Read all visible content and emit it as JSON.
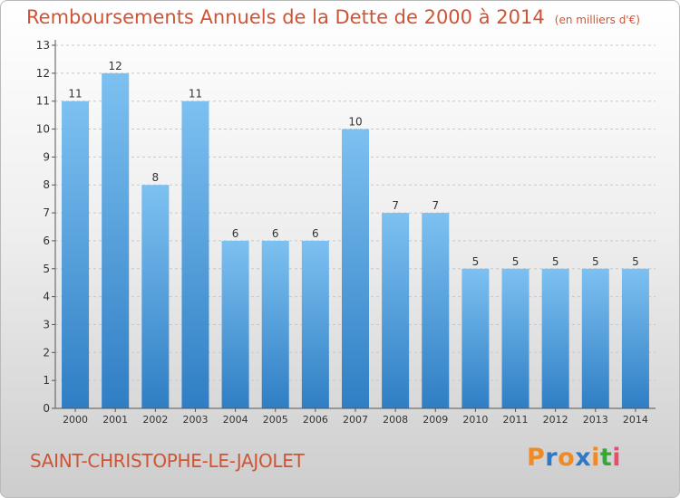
{
  "title": "Remboursements Annuels de la Dette de 2000 à 2014",
  "unit": "(en milliers d'€)",
  "city": "SAINT-CHRISTOPHE-LE-JAJOLET",
  "logo": {
    "text": "Proxiti",
    "colors": [
      "#f08a24",
      "#2f78c4",
      "#f08a24",
      "#2f78c4",
      "#f08a24",
      "#3aa63a",
      "#e84e6b"
    ]
  },
  "colors": {
    "title": "#cf5436",
    "bar_light": "#7dc1f1",
    "bar_dark": "#2f7ec4"
  },
  "chart_data": {
    "type": "bar",
    "categories": [
      "2000",
      "2001",
      "2002",
      "2003",
      "2004",
      "2005",
      "2006",
      "2007",
      "2008",
      "2009",
      "2010",
      "2011",
      "2012",
      "2013",
      "2014"
    ],
    "values": [
      11,
      12,
      8,
      11,
      6,
      6,
      6,
      10,
      7,
      7,
      5,
      5,
      5,
      5,
      5
    ],
    "ylim": [
      0,
      13
    ],
    "yticks": [
      0,
      1,
      2,
      3,
      4,
      5,
      6,
      7,
      8,
      9,
      10,
      11,
      12,
      13
    ],
    "grid": true
  }
}
